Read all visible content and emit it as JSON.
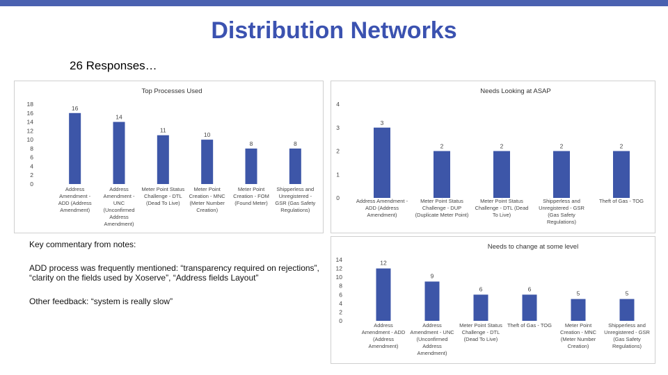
{
  "slide": {
    "title": "Distribution Networks",
    "subtitle": "26 Responses…",
    "accent_color": "#4a61b0",
    "title_color": "#3b52b0",
    "bar_color": "#3d56a8"
  },
  "notes": {
    "heading": "Key commentary from notes:",
    "add_process": "ADD process was frequently mentioned: “transparency required on rejections”, “clarity on the fields used by Xoserve”, “Address fields Layout”",
    "other_feedback": "Other feedback: “system is really slow”"
  },
  "chart_data": [
    {
      "type": "bar",
      "title": "Top Processes Used",
      "categories": [
        "Address Amendment - ADD (Address Amendment)",
        "Address Amendment - UNC (Unconfirmed Address Amendment)",
        "Meter Point Status Challenge - DTL (Dead To Live)",
        "Meter Point Creation - MNC (Meter Number Creation)",
        "Meter Point Creation - FOM (Found Meter)",
        "Shipperless and Unregistered - GSR (Gas Safety Regulations)"
      ],
      "category_lines": [
        [
          "Address",
          "Amendment -",
          "ADD (Address",
          "Amendment)"
        ],
        [
          "Address",
          "Amendment -",
          "UNC",
          "(Unconfirmed",
          "Address",
          "Amendment)"
        ],
        [
          "Meter Point Status",
          "Challenge - DTL",
          "(Dead To Live)"
        ],
        [
          "Meter Point",
          "Creation - MNC",
          "(Meter Number",
          "Creation)"
        ],
        [
          "Meter Point",
          "Creation - FOM",
          "(Found Meter)"
        ],
        [
          "Shipperless and",
          "Unregistered -",
          "GSR (Gas Safety",
          "Regulations)"
        ]
      ],
      "values": [
        16,
        14,
        11,
        10,
        8,
        8
      ],
      "ylim": [
        0,
        18
      ],
      "yticks": [
        0,
        2,
        4,
        6,
        8,
        10,
        12,
        14,
        16,
        18
      ],
      "xlabel": "",
      "ylabel": "",
      "grid": false,
      "legend": "none"
    },
    {
      "type": "bar",
      "title": "Needs Looking at ASAP",
      "categories": [
        "Address Amendment - ADD (Address Amendment)",
        "Meter Point Status Challenge - DUP (Duplicate Meter Point)",
        "Meter Point Status Challenge - DTL (Dead To Live)",
        "Shipperless and Unregistered - GSR (Gas Safety Regulations)",
        "Theft of Gas - TOG"
      ],
      "category_lines": [
        [
          "Address Amendment -",
          "ADD (Address",
          "Amendment)"
        ],
        [
          "Meter Point Status",
          "Challenge - DUP",
          "(Duplicate Meter Point)"
        ],
        [
          "Meter Point Status",
          "Challenge - DTL (Dead",
          "To Live)"
        ],
        [
          "Shipperless and",
          "Unregistered - GSR",
          "(Gas Safety",
          "Regulations)"
        ],
        [
          "Theft of Gas - TOG"
        ]
      ],
      "values": [
        3,
        2,
        2,
        2,
        2
      ],
      "ylim": [
        0,
        4
      ],
      "yticks": [
        0,
        1,
        2,
        3,
        4
      ],
      "xlabel": "",
      "ylabel": "",
      "grid": false,
      "legend": "none"
    },
    {
      "type": "bar",
      "title": "Needs to change at some level",
      "categories": [
        "Address Amendment - ADD (Address Amendment)",
        "Address Amendment - UNC (Unconfirmed Address Amendment)",
        "Meter Point Status Challenge - DTL (Dead To Live)",
        "Theft of Gas - TOG",
        "Meter Point Creation - MNC (Meter Number Creation)",
        "Shipperless and Unregistered - GSR (Gas Safety Regulations)"
      ],
      "category_lines": [
        [
          "Address",
          "Amendment - ADD",
          "(Address",
          "Amendment)"
        ],
        [
          "Address",
          "Amendment - UNC",
          "(Unconfirmed",
          "Address",
          "Amendment)"
        ],
        [
          "Meter Point Status",
          "Challenge - DTL",
          "(Dead To Live)"
        ],
        [
          "Theft of Gas - TOG"
        ],
        [
          "Meter Point",
          "Creation - MNC",
          "(Meter Number",
          "Creation)"
        ],
        [
          "Shipperless and",
          "Unregistered - GSR",
          "(Gas Safety",
          "Regulations)"
        ]
      ],
      "values": [
        12,
        9,
        6,
        6,
        5,
        5
      ],
      "ylim": [
        0,
        14
      ],
      "yticks": [
        0,
        2,
        4,
        6,
        8,
        10,
        12,
        14
      ],
      "xlabel": "",
      "ylabel": "",
      "grid": false,
      "legend": "none"
    }
  ]
}
